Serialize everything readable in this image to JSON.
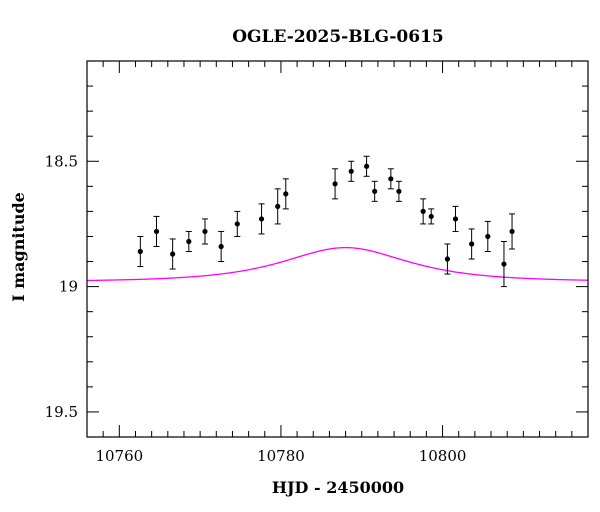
{
  "chart_data": {
    "type": "scatter",
    "title": "OGLE-2025-BLG-0615",
    "xlabel": "HJD - 2450000",
    "ylabel": "I magnitude",
    "xlim": [
      10756,
      10818
    ],
    "ylim": [
      19.6,
      18.1
    ],
    "y_inverted": true,
    "grid": false,
    "x_ticks": [
      10760,
      10780,
      10800
    ],
    "y_ticks": [
      18.5,
      19,
      19.5
    ],
    "x_tick_labels": [
      "10760",
      "10780",
      "10800"
    ],
    "y_tick_labels": [
      "18.5",
      "19",
      "19.5"
    ],
    "x_minor_step": 2,
    "y_minor_step": 0.1,
    "colors": {
      "points": "#000000",
      "model": "#ff00ff",
      "axes": "#000000"
    },
    "series": [
      {
        "type": "scatter",
        "x": [
          10762.6,
          10764.6,
          10766.6,
          10768.6,
          10770.6,
          10772.6,
          10774.6,
          10777.6,
          10779.6,
          10780.6,
          10786.7,
          10788.7,
          10790.6,
          10791.6,
          10793.6,
          10794.6,
          10797.6,
          10798.6,
          10800.6,
          10801.6,
          10803.6,
          10805.6,
          10807.6,
          10808.6
        ],
        "y": [
          18.86,
          18.78,
          18.87,
          18.82,
          18.78,
          18.84,
          18.75,
          18.73,
          18.68,
          18.63,
          18.59,
          18.54,
          18.52,
          18.62,
          18.57,
          18.62,
          18.7,
          18.72,
          18.89,
          18.73,
          18.83,
          18.8,
          18.91,
          18.78
        ],
        "yerr": [
          0.06,
          0.06,
          0.06,
          0.04,
          0.05,
          0.06,
          0.05,
          0.06,
          0.07,
          0.06,
          0.06,
          0.04,
          0.04,
          0.04,
          0.04,
          0.04,
          0.05,
          0.03,
          0.06,
          0.05,
          0.06,
          0.06,
          0.09,
          0.07
        ]
      },
      {
        "type": "line",
        "model": "pspl",
        "t0": 10788.0,
        "tE": 10.0,
        "u0": 0.95,
        "baseline": 18.98,
        "blend_fraction": 0.35
      }
    ]
  }
}
